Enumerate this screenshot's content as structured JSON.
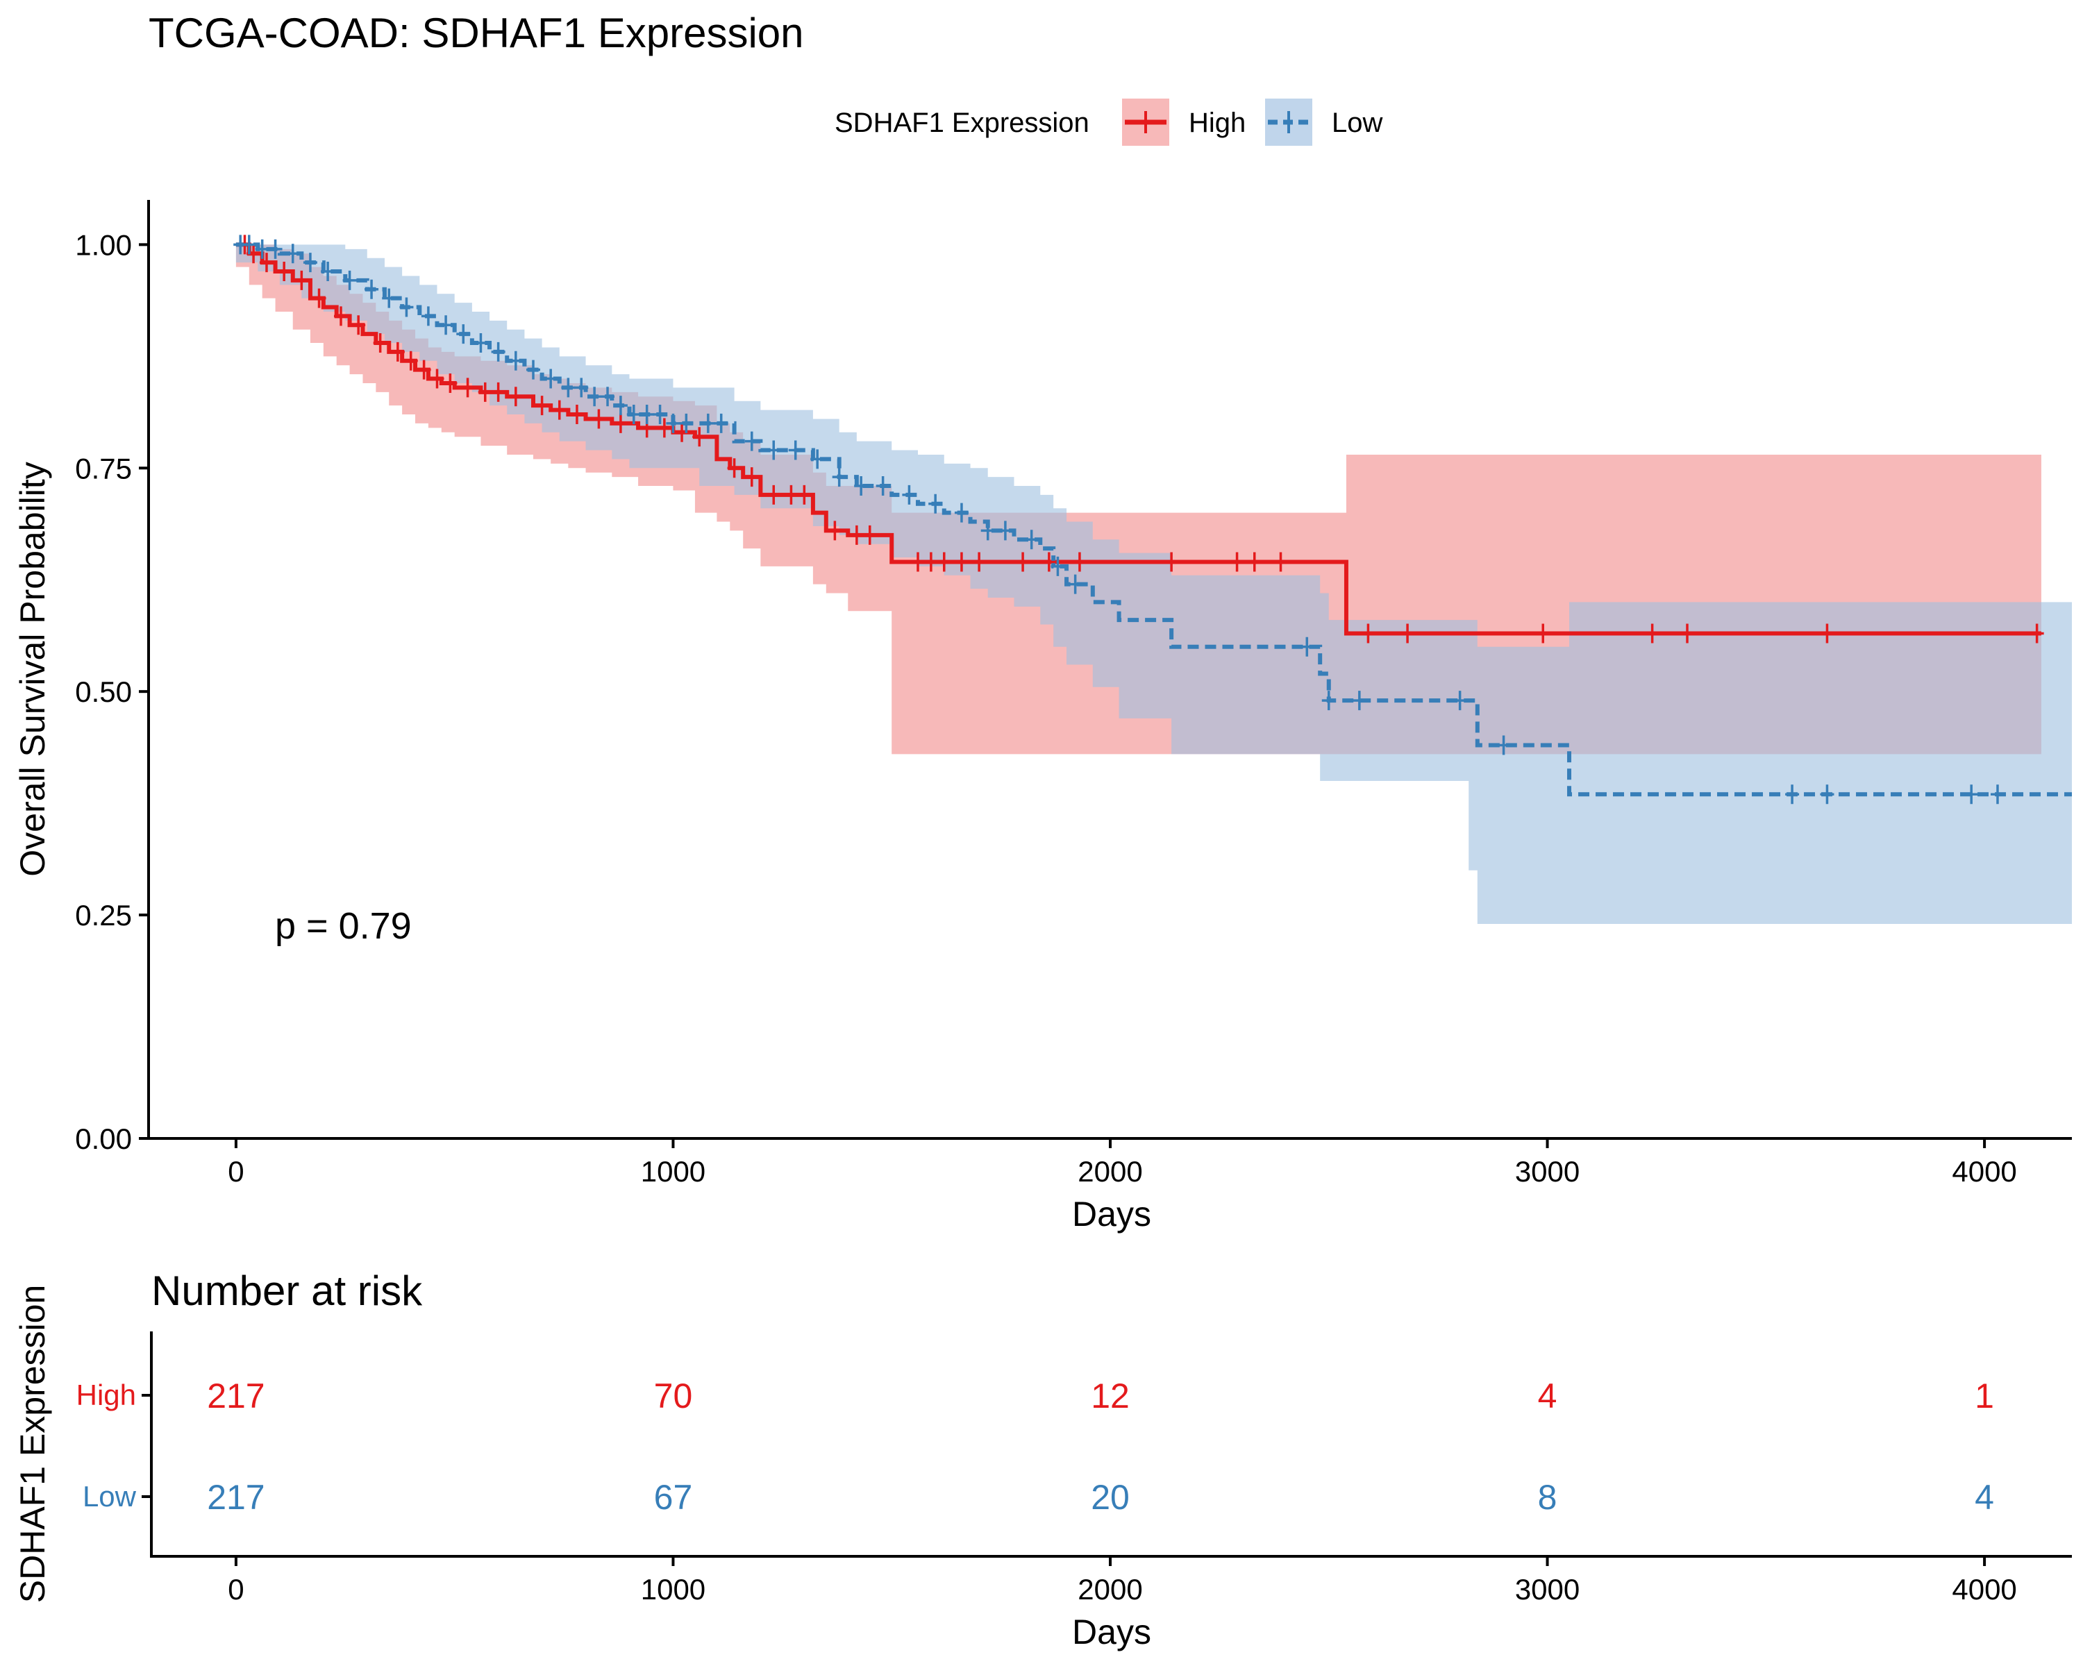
{
  "colors": {
    "high": "#e41a1c",
    "low": "#377eb8",
    "high_band": "#f08080",
    "low_band": "#9ebfe0"
  },
  "chart_data": {
    "type": "line",
    "subtype": "kaplan-meier",
    "title": "TCGA-COAD: SDHAF1 Expression",
    "xlabel": "Days",
    "ylabel": "Overall Survival Probability",
    "xlim": [
      -200,
      4200
    ],
    "ylim": [
      0,
      1.05
    ],
    "xticks": [
      0,
      1000,
      2000,
      3000,
      4000
    ],
    "yticks": [
      0,
      0.25,
      0.5,
      0.75,
      1
    ],
    "ytick_labels": [
      "0.00",
      "0.25",
      "0.50",
      "0.75",
      "1.00"
    ],
    "legend": {
      "title": "SDHAF1 Expression",
      "position": "top"
    },
    "annotation": "p = 0.79",
    "series": [
      {
        "name": "High",
        "line_style": "solid",
        "x": [
          0,
          30,
          60,
          90,
          130,
          170,
          200,
          230,
          260,
          290,
          320,
          350,
          380,
          410,
          440,
          470,
          500,
          560,
          620,
          680,
          720,
          760,
          800,
          860,
          920,
          1000,
          1050,
          1100,
          1130,
          1160,
          1200,
          1320,
          1350,
          1400,
          1500,
          2540,
          4130
        ],
        "y": [
          1.0,
          0.99,
          0.98,
          0.97,
          0.96,
          0.94,
          0.93,
          0.92,
          0.91,
          0.9,
          0.89,
          0.88,
          0.87,
          0.86,
          0.85,
          0.845,
          0.84,
          0.835,
          0.83,
          0.82,
          0.815,
          0.81,
          0.805,
          0.8,
          0.795,
          0.79,
          0.785,
          0.76,
          0.75,
          0.74,
          0.72,
          0.7,
          0.68,
          0.675,
          0.645,
          0.565,
          0.565
        ],
        "upper": [
          1.0,
          1.0,
          1.0,
          0.995,
          0.99,
          0.975,
          0.965,
          0.955,
          0.945,
          0.935,
          0.925,
          0.915,
          0.905,
          0.895,
          0.885,
          0.88,
          0.875,
          0.87,
          0.865,
          0.855,
          0.85,
          0.845,
          0.84,
          0.835,
          0.83,
          0.825,
          0.82,
          0.8,
          0.79,
          0.78,
          0.765,
          0.745,
          0.73,
          0.73,
          0.7,
          0.765,
          0.765
        ],
        "lower": [
          1.0,
          0.975,
          0.955,
          0.94,
          0.925,
          0.905,
          0.89,
          0.875,
          0.865,
          0.855,
          0.845,
          0.835,
          0.82,
          0.81,
          0.8,
          0.795,
          0.79,
          0.785,
          0.775,
          0.765,
          0.76,
          0.755,
          0.75,
          0.745,
          0.74,
          0.73,
          0.725,
          0.7,
          0.69,
          0.68,
          0.66,
          0.64,
          0.62,
          0.61,
          0.59,
          0.43,
          0.43
        ],
        "censor_x": [
          20,
          40,
          70,
          110,
          150,
          190,
          240,
          280,
          330,
          370,
          400,
          430,
          460,
          490,
          530,
          570,
          600,
          640,
          700,
          740,
          780,
          830,
          880,
          940,
          980,
          1020,
          1060,
          1140,
          1180,
          1230,
          1270,
          1300,
          1370,
          1420,
          1450,
          1560,
          1590,
          1620,
          1660,
          1700,
          1800,
          1860,
          1930,
          2140,
          2290,
          2330,
          2390,
          2590,
          2680,
          2990,
          3240,
          3320,
          3640,
          4120
        ]
      },
      {
        "name": "Low",
        "line_style": "dashed",
        "x": [
          0,
          50,
          100,
          150,
          200,
          250,
          300,
          340,
          380,
          420,
          460,
          500,
          540,
          580,
          620,
          660,
          700,
          740,
          800,
          860,
          900,
          1000,
          1060,
          1140,
          1200,
          1320,
          1380,
          1420,
          1500,
          1560,
          1620,
          1680,
          1720,
          1780,
          1840,
          1870,
          1900,
          1960,
          2020,
          2140,
          2480,
          2500,
          2820,
          2840,
          3050,
          4200
        ],
        "y": [
          1.0,
          0.995,
          0.99,
          0.98,
          0.97,
          0.96,
          0.95,
          0.94,
          0.93,
          0.92,
          0.91,
          0.9,
          0.89,
          0.88,
          0.87,
          0.86,
          0.85,
          0.84,
          0.83,
          0.82,
          0.81,
          0.8,
          0.8,
          0.78,
          0.77,
          0.76,
          0.74,
          0.73,
          0.72,
          0.71,
          0.7,
          0.69,
          0.68,
          0.67,
          0.66,
          0.64,
          0.62,
          0.6,
          0.58,
          0.55,
          0.52,
          0.49,
          0.49,
          0.44,
          0.385,
          0.385
        ],
        "upper": [
          1.0,
          1.0,
          1.0,
          1.0,
          1.0,
          0.995,
          0.985,
          0.975,
          0.965,
          0.955,
          0.945,
          0.935,
          0.925,
          0.915,
          0.905,
          0.895,
          0.885,
          0.875,
          0.865,
          0.855,
          0.85,
          0.84,
          0.84,
          0.825,
          0.815,
          0.805,
          0.79,
          0.78,
          0.77,
          0.765,
          0.755,
          0.75,
          0.74,
          0.73,
          0.72,
          0.705,
          0.69,
          0.67,
          0.655,
          0.63,
          0.61,
          0.58,
          0.58,
          0.55,
          0.6,
          0.6
        ],
        "lower": [
          1.0,
          0.98,
          0.97,
          0.955,
          0.94,
          0.925,
          0.915,
          0.9,
          0.89,
          0.88,
          0.87,
          0.855,
          0.845,
          0.835,
          0.82,
          0.81,
          0.8,
          0.79,
          0.78,
          0.77,
          0.76,
          0.75,
          0.75,
          0.73,
          0.72,
          0.705,
          0.685,
          0.675,
          0.665,
          0.65,
          0.64,
          0.63,
          0.615,
          0.605,
          0.595,
          0.575,
          0.55,
          0.53,
          0.505,
          0.47,
          0.43,
          0.4,
          0.4,
          0.3,
          0.24,
          0.24
        ],
        "censor_x": [
          10,
          30,
          60,
          90,
          130,
          170,
          210,
          260,
          310,
          350,
          390,
          440,
          480,
          520,
          560,
          600,
          640,
          680,
          720,
          760,
          790,
          820,
          850,
          880,
          910,
          940,
          970,
          1000,
          1030,
          1080,
          1110,
          1180,
          1230,
          1280,
          1330,
          1380,
          1430,
          1480,
          1540,
          1600,
          1660,
          1720,
          1760,
          1820,
          1880,
          1920,
          2450,
          2500,
          2570,
          2800,
          2900,
          3560,
          3640,
          3970,
          4030
        ]
      }
    ]
  },
  "risk_table": {
    "title": "Number at risk",
    "ylabel": "SDHAF1 Expression",
    "xlabel": "Days",
    "times": [
      0,
      1000,
      2000,
      3000,
      4000
    ],
    "time_labels": [
      "0",
      "1000",
      "2000",
      "3000",
      "4000"
    ],
    "rows": [
      {
        "label": "High",
        "values": [
          "217",
          "70",
          "12",
          "4",
          "1"
        ]
      },
      {
        "label": "Low",
        "values": [
          "217",
          "67",
          "20",
          "8",
          "4"
        ]
      }
    ]
  }
}
